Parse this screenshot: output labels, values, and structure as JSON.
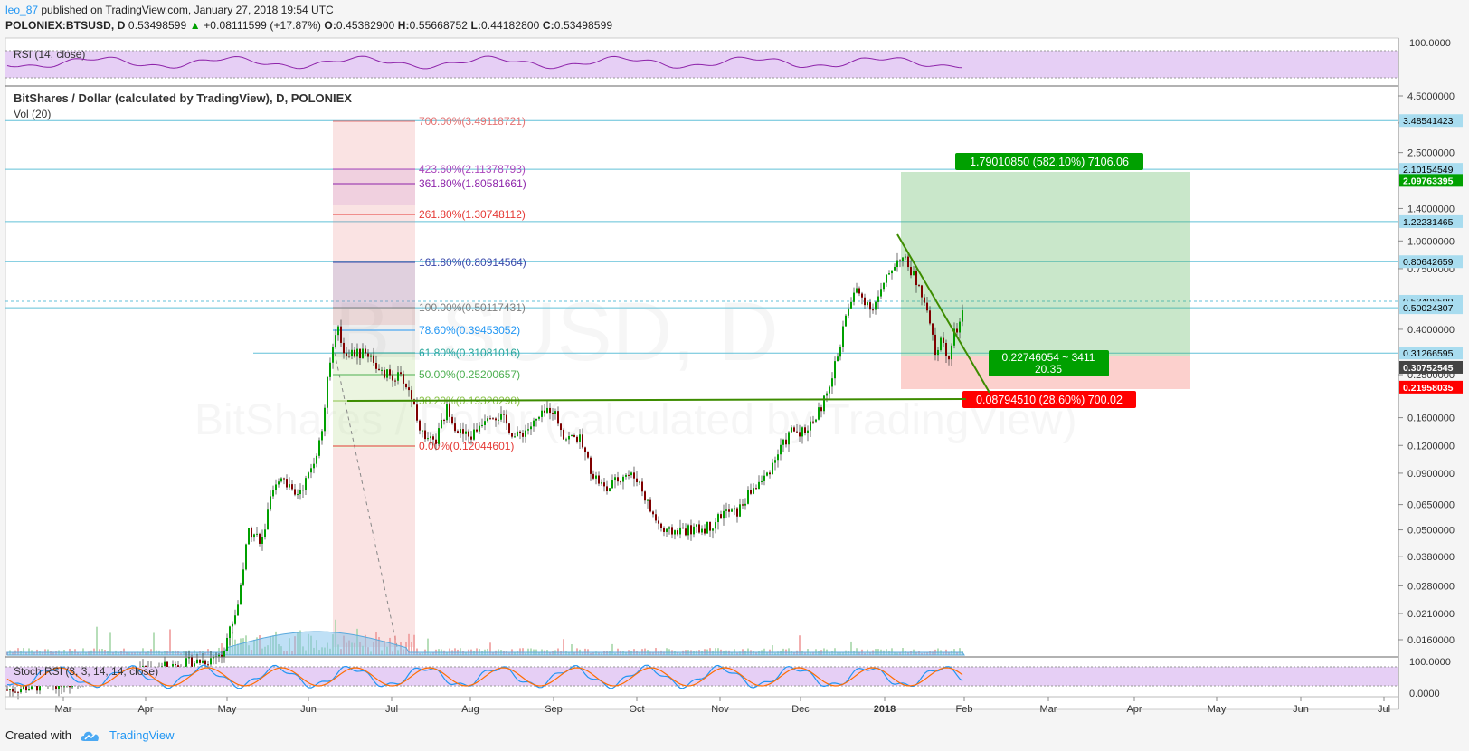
{
  "header": {
    "user": "leo_87",
    "published": " published on TradingView.com, January 27, 2018 19:54 UTC",
    "symbol": "POLONIEX:BTSUSD, D",
    "price": "0.53498599",
    "change_icon": "triangle-up-icon",
    "change": "+0.08111599 (+17.87%)",
    "open_label": "O:",
    "open": "0.45382900",
    "high_label": "H:",
    "high": "0.55668752",
    "low_label": "L:",
    "low": "0.44182800",
    "close_label": "C:",
    "close": "0.53498599"
  },
  "footer": {
    "created_with": "Created with",
    "brand": "TradingView",
    "logo_icon": "tradingview-cloud-icon"
  },
  "watermark": {
    "symbol": "BTSUSD, D",
    "name": "BitShares / Dollar (calculated by TradingView)"
  },
  "colors": {
    "rsi_fill": "#e6cff5",
    "candle_up": "#00a000",
    "candle_down": "#800000",
    "volume": "#80c2ee",
    "hline": "#62c0d8",
    "trendline": "#3d8c00",
    "target_green": "#00a000",
    "stop_red": "#ff0000"
  },
  "chart_data": {
    "type": "candlestick",
    "title": "BitShares / Dollar (calculated by TradingView), D, POLONIEX",
    "volume_label": "Vol (20)",
    "y_scale": "log",
    "x_ticks": [
      "Mar",
      "Apr",
      "May",
      "Jun",
      "Jul",
      "Aug",
      "Sep",
      "Oct",
      "Nov",
      "Dec",
      "2018",
      "Feb",
      "Mar",
      "Apr",
      "May",
      "Jun",
      "Jul"
    ],
    "y_ticks": [
      "4.5000000",
      "3.4000000",
      "2.5000000",
      "1.4000000",
      "1.0000000",
      "0.7500000",
      "0.4000000",
      "0.2500000",
      "0.1600000",
      "0.1200000",
      "0.0900000",
      "0.0650000",
      "0.0500000",
      "0.0380000",
      "0.0280000",
      "0.0210000",
      "0.0160000"
    ],
    "right_labels": [
      {
        "value": "3.48541423",
        "type": "hline"
      },
      {
        "value": "2.10154549",
        "type": "hline"
      },
      {
        "value": "2.09763395",
        "type": "target"
      },
      {
        "value": "1.22231465",
        "type": "hline"
      },
      {
        "value": "0.80642659",
        "type": "hline"
      },
      {
        "value": "0.53498599",
        "type": "last"
      },
      {
        "value": "0.50024307",
        "type": "hline"
      },
      {
        "value": "0.31266595",
        "type": "hline"
      },
      {
        "value": "0.30752545",
        "type": "entry"
      },
      {
        "value": "0.21958035",
        "type": "stop"
      }
    ],
    "fib_levels": [
      {
        "label": "700.00%(3.49118721)",
        "color": "#e57373"
      },
      {
        "label": "423.60%(2.11378793)",
        "color": "#ab47bc"
      },
      {
        "label": "361.80%(1.80581661)",
        "color": "#8e24aa"
      },
      {
        "label": "261.80%(1.30748112)",
        "color": "#e53935"
      },
      {
        "label": "161.80%(0.80914564)",
        "color": "#3949ab"
      },
      {
        "label": "100.00%(0.50117431)",
        "color": "#808080"
      },
      {
        "label": "78.60%(0.39453052)",
        "color": "#2196f3"
      },
      {
        "label": "61.80%(0.31081016)",
        "color": "#26a69a"
      },
      {
        "label": "50.00%(0.25200657)",
        "color": "#4caf50"
      },
      {
        "label": "38.20%(0.19320298)",
        "color": "#8bc34a"
      },
      {
        "label": "0.00%(0.12044601)",
        "color": "#e53935"
      }
    ],
    "position": {
      "target_text": "1.79010850 (582.10%) 7106.06",
      "entry_text": "0.22746054 ~ 3411",
      "entry_text2": "20.35",
      "stop_text": "0.08794510 (28.60%) 700.02"
    },
    "rsi": {
      "label": "RSI (14, close)",
      "y_ticks": [
        "100.0000"
      ]
    },
    "stoch_rsi": {
      "label": "Stoch RSI (3, 3, 14, 14, close)",
      "y_ticks": [
        "100.0000",
        "0.0000"
      ]
    }
  }
}
